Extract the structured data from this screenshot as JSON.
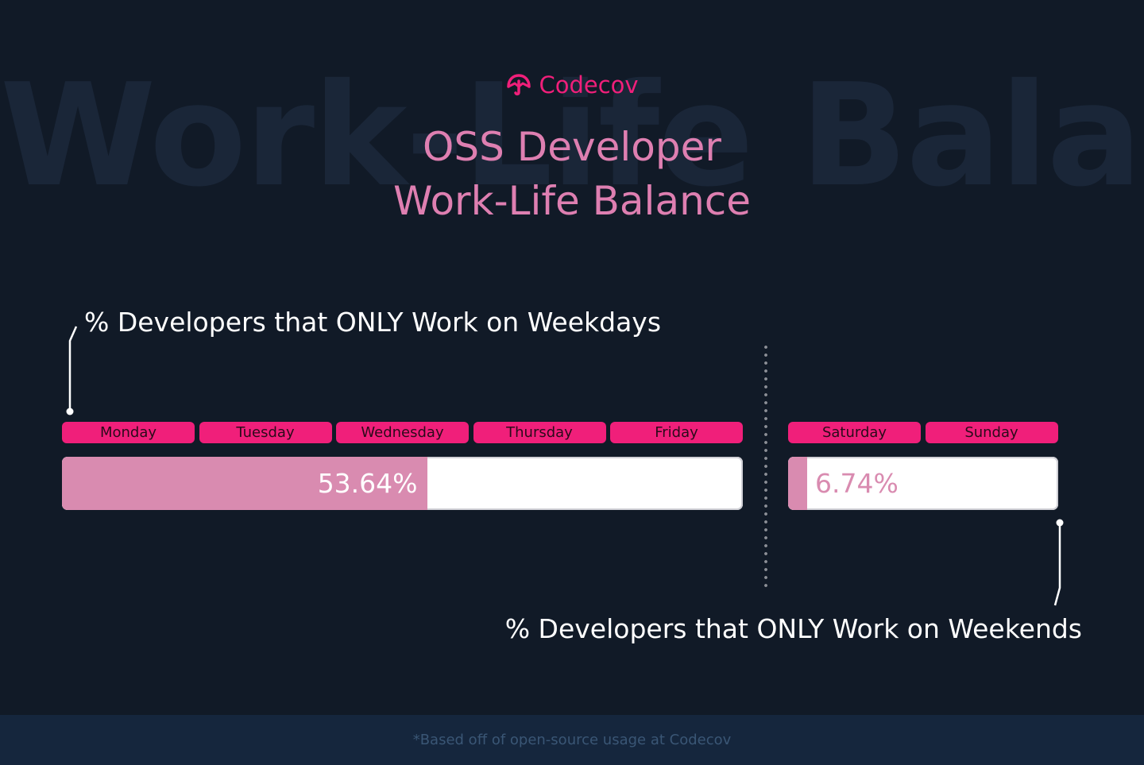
{
  "background_word": "Work-Life Balance",
  "brand": {
    "name": "Codecov",
    "icon": "umbrella-logo-icon"
  },
  "title_lines": [
    "OSS Developer",
    "Work-Life Balance"
  ],
  "callouts": {
    "weekdays": "% Developers that ONLY Work on Weekdays",
    "weekends": "% Developers that ONLY Work on Weekends"
  },
  "footnote": "*Based off of open-source usage at Codecov",
  "colors": {
    "accent": "#f01f7a",
    "title": "#de7fb1",
    "fill": "#d98bb0",
    "background": "#111a27"
  },
  "chart_data": {
    "type": "bar",
    "orientation": "horizontal",
    "groups": [
      {
        "days": [
          "Monday",
          "Tuesday",
          "Wednesday",
          "Thursday",
          "Friday"
        ],
        "value": 53.64,
        "label": "53.64%",
        "max": 100
      },
      {
        "days": [
          "Saturday",
          "Sunday"
        ],
        "value": 6.74,
        "label": "6.74%",
        "max": 100
      }
    ]
  }
}
